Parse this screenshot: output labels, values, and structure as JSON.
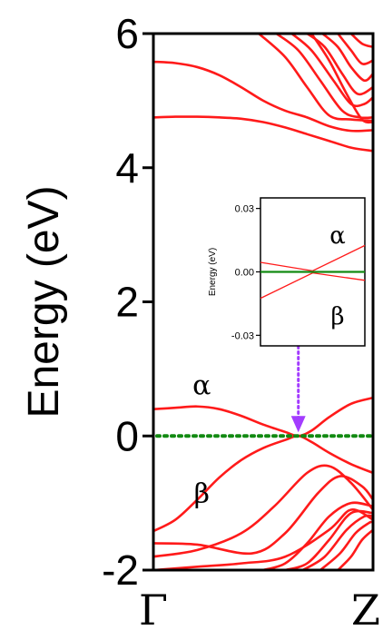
{
  "chart_data": [
    {
      "type": "line",
      "ylabel": "Energy (eV)",
      "ylim": [
        -2,
        6
      ],
      "yticks": [
        -2,
        0,
        2,
        4,
        6
      ],
      "ytick_labels": [
        "-2",
        "0",
        "2",
        "4",
        "6"
      ],
      "xlim": [
        0,
        1
      ],
      "xtick_labels": [
        "Γ",
        "Z"
      ],
      "annotations": [
        "α",
        "β"
      ],
      "colors": {
        "bands": "#ff1a1a",
        "fermi": "#128a12",
        "arrow": "#a33cff"
      },
      "fermi_level": 0,
      "series": [
        {
          "x": [
            0,
            0.1,
            0.2,
            0.3,
            0.4,
            0.5,
            0.6,
            0.66,
            0.72,
            0.8,
            0.9,
            1.0
          ],
          "values": [
            0.4,
            0.42,
            0.44,
            0.4,
            0.3,
            0.17,
            0.06,
            0.0,
            0.08,
            0.28,
            0.48,
            0.57
          ]
        },
        {
          "x": [
            0,
            0.1,
            0.2,
            0.3,
            0.4,
            0.5,
            0.6,
            0.66,
            0.72,
            0.8,
            0.9,
            1.0
          ],
          "values": [
            -1.42,
            -1.25,
            -0.95,
            -0.62,
            -0.36,
            -0.18,
            -0.06,
            0.0,
            -0.09,
            -0.25,
            -0.42,
            -0.55
          ]
        },
        {
          "x": [
            0,
            0.2,
            0.4,
            0.55,
            0.7,
            0.8,
            0.9,
            1.0
          ],
          "values": [
            -1.8,
            -1.7,
            -1.45,
            -1.05,
            -0.55,
            -0.45,
            -0.7,
            -1.1
          ]
        },
        {
          "x": [
            0,
            0.2,
            0.45,
            0.6,
            0.75,
            0.85,
            0.95,
            1.0
          ],
          "values": [
            -1.6,
            -1.62,
            -1.75,
            -1.45,
            -0.85,
            -0.6,
            -0.75,
            -0.95
          ]
        },
        {
          "x": [
            0,
            0.2,
            0.4,
            0.6,
            0.8,
            0.9,
            1.0
          ],
          "values": [
            -2.0,
            -1.95,
            -1.9,
            -1.8,
            -1.4,
            -1.1,
            -1.25
          ]
        },
        {
          "x": [
            0.5,
            0.6,
            0.7,
            0.8,
            0.9,
            1.0
          ],
          "values": [
            -2.0,
            -1.9,
            -1.6,
            -1.2,
            -1.0,
            -1.05
          ]
        },
        {
          "x": [
            0.6,
            0.7,
            0.8,
            0.9,
            1.0
          ],
          "values": [
            -2.0,
            -1.9,
            -1.55,
            -1.15,
            -1.15
          ]
        },
        {
          "x": [
            0.68,
            0.78,
            0.88,
            0.96,
            1.0
          ],
          "values": [
            -2.0,
            -1.8,
            -1.4,
            -1.2,
            -1.2
          ]
        },
        {
          "x": [
            0.76,
            0.85,
            0.92,
            0.98,
            1.0
          ],
          "values": [
            -2.0,
            -1.75,
            -1.45,
            -1.3,
            -1.28
          ]
        },
        {
          "x": [
            0.84,
            0.9,
            0.95,
            1.0
          ],
          "values": [
            -2.0,
            -1.8,
            -1.55,
            -1.4
          ]
        },
        {
          "x": [
            0,
            0.1,
            0.2,
            0.3,
            0.4,
            0.5,
            0.6,
            0.7,
            0.8,
            0.9,
            1.0
          ],
          "values": [
            4.75,
            4.76,
            4.76,
            4.75,
            4.73,
            4.68,
            4.6,
            4.5,
            4.4,
            4.3,
            4.25
          ]
        },
        {
          "x": [
            0,
            0.1,
            0.2,
            0.3,
            0.4,
            0.5,
            0.6,
            0.7,
            0.8,
            0.9,
            1.0
          ],
          "values": [
            5.58,
            5.56,
            5.5,
            5.38,
            5.2,
            5.0,
            4.85,
            4.75,
            4.62,
            4.55,
            4.56
          ]
        },
        {
          "x": [
            0.48,
            0.6,
            0.7,
            0.8,
            0.9,
            1.0
          ],
          "values": [
            6.0,
            5.65,
            5.2,
            4.78,
            4.72,
            4.7
          ]
        },
        {
          "x": [
            0.56,
            0.66,
            0.76,
            0.86,
            0.94,
            1.0
          ],
          "values": [
            6.0,
            5.75,
            5.3,
            4.85,
            4.75,
            4.75
          ]
        },
        {
          "x": [
            0.63,
            0.72,
            0.82,
            0.9,
            0.96,
            1.0
          ],
          "values": [
            6.0,
            5.75,
            5.3,
            4.95,
            4.95,
            5.05
          ]
        },
        {
          "x": [
            0.7,
            0.78,
            0.86,
            0.93,
            1.0
          ],
          "values": [
            6.0,
            5.8,
            5.4,
            5.1,
            5.2
          ]
        },
        {
          "x": [
            0.77,
            0.84,
            0.9,
            0.96,
            1.0
          ],
          "values": [
            6.0,
            5.8,
            5.5,
            5.3,
            5.4
          ]
        },
        {
          "x": [
            0.84,
            0.9,
            0.95,
            1.0
          ],
          "values": [
            6.0,
            5.75,
            5.55,
            5.6
          ]
        },
        {
          "x": [
            0.9,
            0.95,
            1.0
          ],
          "values": [
            6.0,
            5.85,
            5.8
          ]
        },
        {
          "x": [
            0.72,
            0.8,
            0.88,
            0.95,
            1.0
          ],
          "values": [
            6.0,
            5.6,
            5.1,
            4.72,
            4.68
          ]
        }
      ]
    },
    {
      "type": "line",
      "ylabel": "Energy (eV)",
      "ylim": [
        -0.035,
        0.035
      ],
      "yticks": [
        -0.03,
        0.0,
        0.03
      ],
      "ytick_labels": [
        "-0.03",
        "0.00",
        "0.03"
      ],
      "xlim": [
        0,
        1
      ],
      "annotations": [
        "α",
        "β"
      ],
      "series": [
        {
          "x": [
            0,
            0.5,
            1.0
          ],
          "values": [
            0.0045,
            0.0005,
            0.0125
          ]
        },
        {
          "x": [
            0,
            0.5,
            1.0
          ],
          "values": [
            -0.0125,
            -0.0005,
            -0.004
          ]
        },
        {
          "x": [
            0,
            1.0
          ],
          "values": [
            0.0,
            0.0
          ]
        }
      ]
    }
  ]
}
